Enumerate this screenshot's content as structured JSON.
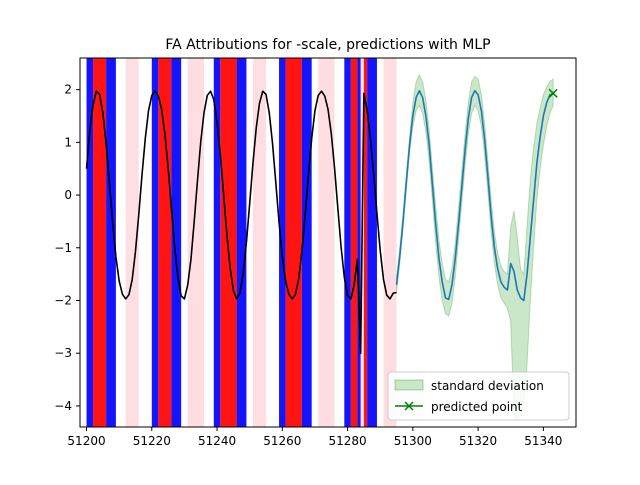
{
  "chart_data": {
    "type": "line",
    "title": "FA Attributions for -scale, predictions with MLP",
    "xlabel": "",
    "ylabel": "",
    "xlim": [
      51198,
      51350
    ],
    "ylim": [
      -4.4,
      2.6
    ],
    "xticks": [
      51200,
      51220,
      51240,
      51260,
      51280,
      51300,
      51320,
      51340
    ],
    "yticks": [
      -4,
      -3,
      -2,
      -1,
      0,
      1,
      2
    ],
    "grid": false,
    "legend_position": "lower-right",
    "legend": [
      {
        "label": "standard deviation",
        "kind": "band",
        "color": "#2ca02c"
      },
      {
        "label": "predicted point",
        "kind": "marker",
        "color": "#008000"
      }
    ],
    "attribution_colors": {
      "strong_positive": "#ff0000",
      "strong_negative": "#0000ff",
      "weak": "#ffb6c1"
    },
    "attribution_spans": [
      {
        "x0": 51200,
        "x1": 51202,
        "kind": "strong_negative"
      },
      {
        "x0": 51202,
        "x1": 51206,
        "kind": "strong_positive"
      },
      {
        "x0": 51206,
        "x1": 51209,
        "kind": "strong_negative"
      },
      {
        "x0": 51212,
        "x1": 51216,
        "kind": "weak"
      },
      {
        "x0": 51220,
        "x1": 51222,
        "kind": "strong_negative"
      },
      {
        "x0": 51222,
        "x1": 51226,
        "kind": "strong_positive"
      },
      {
        "x0": 51226,
        "x1": 51229,
        "kind": "strong_negative"
      },
      {
        "x0": 51231,
        "x1": 51236,
        "kind": "weak"
      },
      {
        "x0": 51239,
        "x1": 51241,
        "kind": "strong_negative"
      },
      {
        "x0": 51241,
        "x1": 51246,
        "kind": "strong_positive"
      },
      {
        "x0": 51246,
        "x1": 51249,
        "kind": "strong_negative"
      },
      {
        "x0": 51251,
        "x1": 51255,
        "kind": "weak"
      },
      {
        "x0": 51259,
        "x1": 51261,
        "kind": "strong_negative"
      },
      {
        "x0": 51261,
        "x1": 51266,
        "kind": "strong_positive"
      },
      {
        "x0": 51266,
        "x1": 51269,
        "kind": "strong_negative"
      },
      {
        "x0": 51271,
        "x1": 51276,
        "kind": "weak"
      },
      {
        "x0": 51279,
        "x1": 51281,
        "kind": "strong_negative"
      },
      {
        "x0": 51281,
        "x1": 51283,
        "kind": "strong_positive"
      },
      {
        "x0": 51283,
        "x1": 51284,
        "kind": "strong_negative"
      },
      {
        "x0": 51284,
        "x1": 51285,
        "kind": "weak"
      },
      {
        "x0": 51285,
        "x1": 51286,
        "kind": "strong_positive"
      },
      {
        "x0": 51286,
        "x1": 51289,
        "kind": "strong_negative"
      },
      {
        "x0": 51291,
        "x1": 51295,
        "kind": "weak"
      }
    ],
    "series": [
      {
        "role": "history",
        "color": "#000000",
        "x": [
          51200,
          51201,
          51202,
          51203,
          51204,
          51205,
          51206,
          51207,
          51208,
          51209,
          51210,
          51211,
          51212,
          51213,
          51214,
          51215,
          51216,
          51217,
          51218,
          51219,
          51220,
          51221,
          51222,
          51223,
          51224,
          51225,
          51226,
          51227,
          51228,
          51229,
          51230,
          51231,
          51232,
          51233,
          51234,
          51235,
          51236,
          51237,
          51238,
          51239,
          51240,
          51241,
          51242,
          51243,
          51244,
          51245,
          51246,
          51247,
          51248,
          51249,
          51250,
          51251,
          51252,
          51253,
          51254,
          51255,
          51256,
          51257,
          51258,
          51259,
          51260,
          51261,
          51262,
          51263,
          51264,
          51265,
          51266,
          51267,
          51268,
          51269,
          51270,
          51271,
          51272,
          51273,
          51274,
          51275,
          51276,
          51277,
          51278,
          51279,
          51280,
          51281,
          51282,
          51283,
          51284,
          51285,
          51286,
          51287,
          51288,
          51289,
          51290,
          51291,
          51292,
          51293,
          51294,
          51295
        ],
        "y": [
          0.5,
          1.22,
          1.71,
          1.97,
          1.91,
          1.56,
          0.98,
          0.24,
          -0.52,
          -1.17,
          -1.63,
          -1.88,
          -1.97,
          -1.89,
          -1.6,
          -1.07,
          -0.38,
          0.38,
          1.07,
          1.6,
          1.89,
          1.97,
          1.88,
          1.63,
          1.17,
          0.52,
          -0.24,
          -0.98,
          -1.56,
          -1.91,
          -1.97,
          -1.71,
          -1.22,
          -0.5,
          0.27,
          1.01,
          1.56,
          1.89,
          1.97,
          1.81,
          1.38,
          0.77,
          0.02,
          -0.74,
          -1.38,
          -1.81,
          -1.97,
          -1.86,
          -1.49,
          -0.9,
          -0.16,
          0.6,
          1.27,
          1.74,
          1.97,
          1.91,
          1.56,
          0.98,
          0.24,
          -0.52,
          -1.17,
          -1.63,
          -1.88,
          -1.97,
          -1.89,
          -1.6,
          -1.07,
          -0.38,
          0.38,
          1.07,
          1.6,
          1.89,
          1.97,
          1.88,
          1.63,
          1.17,
          0.52,
          -0.24,
          -0.98,
          -1.56,
          -1.91,
          -1.97,
          -1.71,
          -1.22,
          -3.0,
          1.93,
          1.6,
          1.07,
          0.4,
          -0.35,
          -1.05,
          -1.6,
          -1.9,
          -1.97,
          -1.86,
          -1.85
        ]
      },
      {
        "role": "prediction",
        "color": "#1f77b4",
        "x": [
          51295,
          51296,
          51297,
          51298,
          51299,
          51300,
          51301,
          51302,
          51303,
          51304,
          51305,
          51306,
          51307,
          51308,
          51309,
          51310,
          51311,
          51312,
          51313,
          51314,
          51315,
          51316,
          51317,
          51318,
          51319,
          51320,
          51321,
          51322,
          51323,
          51324,
          51325,
          51326,
          51327,
          51328,
          51329,
          51330,
          51331,
          51332,
          51333,
          51334,
          51335,
          51336,
          51337,
          51338,
          51339,
          51340,
          51341,
          51342,
          51343
        ],
        "y": [
          -1.7,
          -1.15,
          -0.5,
          0.25,
          0.95,
          1.5,
          1.85,
          1.98,
          1.85,
          1.5,
          0.95,
          0.2,
          -0.55,
          -1.2,
          -1.65,
          -1.95,
          -1.98,
          -1.7,
          -1.2,
          -0.55,
          0.15,
          0.85,
          1.45,
          1.85,
          1.98,
          1.9,
          1.6,
          1.05,
          0.35,
          -0.4,
          -1.0,
          -1.4,
          -1.65,
          -1.75,
          -1.8,
          -1.3,
          -1.45,
          -1.8,
          -1.95,
          -2.0,
          -1.5,
          -0.8,
          -0.1,
          0.6,
          1.1,
          1.5,
          1.75,
          1.9,
          1.93
        ]
      }
    ],
    "std_band": {
      "x": [
        51295,
        51296,
        51297,
        51298,
        51299,
        51300,
        51301,
        51302,
        51303,
        51304,
        51305,
        51306,
        51307,
        51308,
        51309,
        51310,
        51311,
        51312,
        51313,
        51314,
        51315,
        51316,
        51317,
        51318,
        51319,
        51320,
        51321,
        51322,
        51323,
        51324,
        51325,
        51326,
        51327,
        51328,
        51329,
        51330,
        51331,
        51332,
        51333,
        51334,
        51335,
        51336,
        51337,
        51338,
        51339,
        51340,
        51341,
        51342,
        51343
      ],
      "lower": [
        -1.85,
        -1.3,
        -0.65,
        0.1,
        0.8,
        1.3,
        1.6,
        1.7,
        1.55,
        1.2,
        0.65,
        -0.1,
        -0.9,
        -1.55,
        -2.0,
        -2.25,
        -2.3,
        -2.05,
        -1.55,
        -0.85,
        -0.15,
        0.55,
        1.15,
        1.55,
        1.7,
        1.6,
        1.3,
        0.75,
        0.05,
        -0.7,
        -1.3,
        -1.7,
        -1.95,
        -2.05,
        -2.15,
        -2.4,
        -4.2,
        -4.25,
        -4.15,
        -4.0,
        -3.2,
        -2.0,
        -1.0,
        -0.1,
        0.5,
        0.95,
        1.3,
        1.55,
        1.7
      ],
      "upper": [
        -1.55,
        -1.0,
        -0.35,
        0.4,
        1.1,
        1.75,
        2.15,
        2.28,
        2.15,
        1.8,
        1.25,
        0.5,
        -0.2,
        -0.85,
        -1.3,
        -1.6,
        -1.65,
        -1.4,
        -0.9,
        -0.25,
        0.45,
        1.15,
        1.75,
        2.15,
        2.25,
        2.2,
        1.9,
        1.35,
        0.65,
        -0.1,
        -0.7,
        -1.1,
        -1.35,
        -1.45,
        -1.5,
        -0.6,
        -0.3,
        -0.8,
        -1.4,
        -1.5,
        -0.6,
        0.3,
        0.9,
        1.35,
        1.65,
        1.9,
        2.05,
        2.15,
        2.2
      ]
    },
    "predicted_point": {
      "x": 51343,
      "y": 1.93
    }
  }
}
